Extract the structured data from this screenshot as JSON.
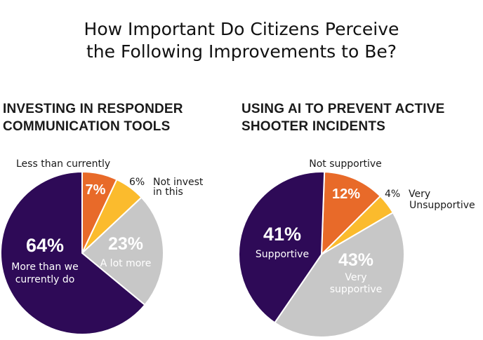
{
  "title": [
    "How Important Do Citizens Perceive",
    "the Following Improvements to Be?"
  ],
  "colors": {
    "purple": "#2e0a57",
    "orange": "#e86a29",
    "yellow": "#fbbb2d",
    "gray": "#c7c7c7"
  },
  "chart_data": [
    {
      "type": "pie",
      "title_lines": [
        "INVESTING IN RESPONDER",
        "COMMUNICATION TOOLS"
      ],
      "slices": [
        {
          "value": 7,
          "pct": "7%",
          "label_lines": [
            "Less than currently"
          ]
        },
        {
          "value": 6,
          "pct": "6%",
          "label_lines": [
            "Not invest",
            "in this"
          ]
        },
        {
          "value": 23,
          "pct": "23%",
          "label_lines": [
            "A lot more"
          ]
        },
        {
          "value": 64,
          "pct": "64%",
          "label_lines": [
            "More than we",
            "currently do"
          ]
        }
      ]
    },
    {
      "type": "pie",
      "title_lines": [
        "USING AI TO PREVENT ACTIVE",
        "SHOOTER INCIDENTS"
      ],
      "slices": [
        {
          "value": 12,
          "pct": "12%",
          "label_lines": [
            "Not supportive"
          ]
        },
        {
          "value": 4,
          "pct": "4%",
          "label_lines": [
            "Very",
            "Unsupportive"
          ]
        },
        {
          "value": 43,
          "pct": "43%",
          "label_lines": [
            "Very",
            "supportive"
          ]
        },
        {
          "value": 41,
          "pct": "41%",
          "label_lines": [
            "Supportive"
          ]
        }
      ]
    }
  ]
}
